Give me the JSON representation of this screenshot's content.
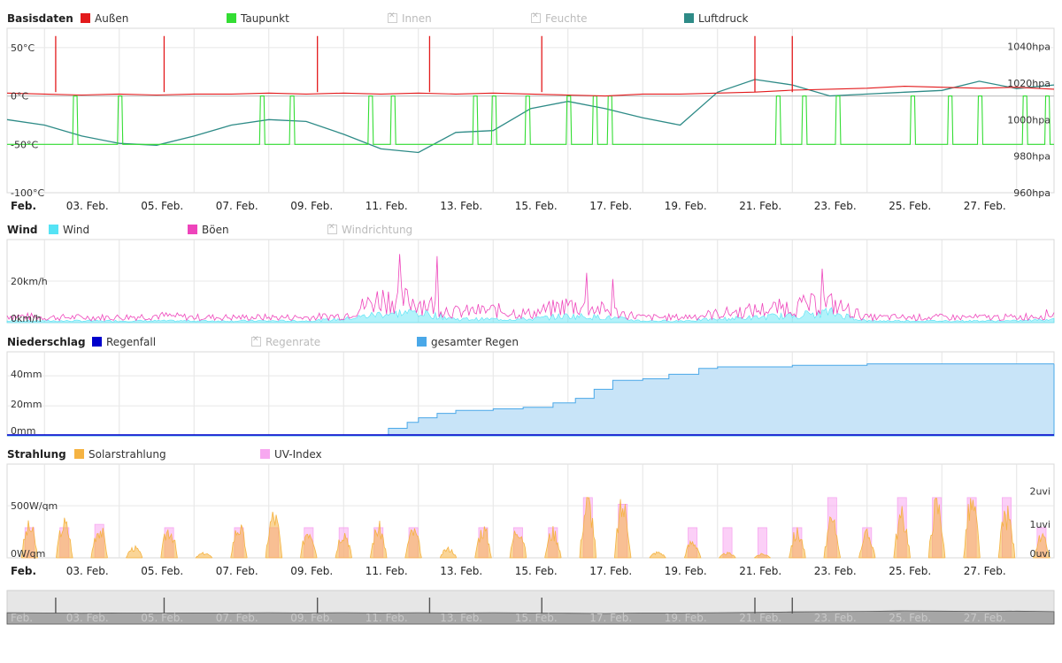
{
  "panels": [
    {
      "id": "basisdaten",
      "title": "Basisdaten",
      "legend": [
        {
          "label": "Außen",
          "color": "#e31a1c",
          "hidden": false
        },
        {
          "label": "Taupunkt",
          "color": "#33dd33",
          "hidden": false
        },
        {
          "label": "Innen",
          "color": "#cccccc",
          "hidden": true
        },
        {
          "label": "Feuchte",
          "color": "#cccccc",
          "hidden": true
        },
        {
          "label": "Luftdruck",
          "color": "#2e8b87",
          "hidden": false
        }
      ],
      "y_left_labels": [
        "50°C",
        "0°C",
        "-50°C",
        "-100°C"
      ],
      "y_right_labels": [
        "1040hpa",
        "1020hpa",
        "1000hpa",
        "980hpa",
        "960hpa"
      ]
    },
    {
      "id": "wind",
      "title": "Wind",
      "legend": [
        {
          "label": "Wind",
          "color": "#55e3f5",
          "hidden": false
        },
        {
          "label": "Böen",
          "color": "#ee44bb",
          "hidden": false
        },
        {
          "label": "Windrichtung",
          "color": "#cccccc",
          "hidden": true
        }
      ],
      "y_left_labels": [
        "20km/h",
        "0km/h"
      ]
    },
    {
      "id": "niederschlag",
      "title": "Niederschlag",
      "legend": [
        {
          "label": "Regenfall",
          "color": "#0000cc",
          "hidden": false
        },
        {
          "label": "Regenrate",
          "color": "#cccccc",
          "hidden": true
        },
        {
          "label": "gesamter Regen",
          "color": "#4aa8e8",
          "hidden": false
        }
      ],
      "y_left_labels": [
        "40mm",
        "20mm",
        "0mm"
      ]
    },
    {
      "id": "strahlung",
      "title": "Strahlung",
      "legend": [
        {
          "label": "Solarstrahlung",
          "color": "#f5b342",
          "hidden": false
        },
        {
          "label": "UV-Index",
          "color": "#f7a8f0",
          "hidden": false
        }
      ],
      "y_left_labels": [
        "500W/qm",
        "0W/qm"
      ],
      "y_right_labels": [
        "2uvi",
        "1uvi",
        "0uvi"
      ]
    }
  ],
  "date_labels": [
    "Feb.",
    "03. Feb.",
    "05. Feb.",
    "07. Feb.",
    "09. Feb.",
    "11. Feb.",
    "13. Feb.",
    "15. Feb.",
    "17. Feb.",
    "19. Feb.",
    "21. Feb.",
    "23. Feb.",
    "25. Feb.",
    "27. Feb."
  ],
  "chart_data": [
    {
      "type": "line",
      "x_label_days": [
        1,
        3,
        5,
        7,
        9,
        11,
        13,
        15,
        17,
        19,
        21,
        23,
        25,
        27
      ],
      "xlim_days": [
        1,
        29
      ],
      "series": [
        {
          "name": "Außen",
          "color": "#e31a1c",
          "axis": "left",
          "x": [
            1,
            2,
            3,
            4,
            5,
            6,
            7,
            8,
            9,
            10,
            11,
            12,
            13,
            14,
            15,
            16,
            17,
            18,
            19,
            20,
            21,
            22,
            23,
            24,
            25,
            26,
            27,
            28,
            29
          ],
          "values": [
            3,
            2,
            1,
            2,
            1,
            2,
            2,
            3,
            2,
            3,
            2,
            3,
            2,
            3,
            2,
            1,
            0,
            2,
            2,
            3,
            4,
            6,
            7,
            8,
            10,
            9,
            8,
            9,
            7
          ]
        },
        {
          "name": "Taupunkt",
          "color": "#33dd33",
          "axis": "left",
          "x": [
            1,
            2,
            3,
            4,
            5,
            6,
            7,
            8,
            9,
            10,
            11,
            12,
            13,
            14,
            15,
            16,
            17,
            18,
            19,
            20,
            21,
            22,
            23,
            24,
            25,
            26,
            27,
            28,
            29
          ],
          "values": [
            -50,
            -50,
            -52,
            -52,
            -52,
            -51,
            -50,
            -50,
            -50,
            -50,
            -52,
            -52,
            -50,
            -51,
            -51,
            -50,
            -52,
            -52,
            -51,
            -52,
            -52,
            -50,
            -52,
            -50,
            -51,
            -50,
            -50,
            -51,
            -51
          ]
        },
        {
          "name": "Luftdruck",
          "color": "#2e8b87",
          "axis": "right",
          "x": [
            1,
            2,
            3,
            4,
            5,
            6,
            7,
            8,
            9,
            10,
            11,
            12,
            13,
            14,
            15,
            16,
            17,
            18,
            19,
            20,
            21,
            22,
            23,
            24,
            25,
            26,
            27,
            28,
            29
          ],
          "values": [
            1000,
            997,
            991,
            987,
            986,
            991,
            997,
            1000,
            999,
            992,
            984,
            982,
            993,
            994,
            1006,
            1010,
            1006,
            1001,
            997,
            1015,
            1022,
            1019,
            1013,
            1014,
            1015,
            1016,
            1021,
            1017,
            1019
          ]
        }
      ],
      "spikes_outdoor_days": [
        2.3,
        5.2,
        9.3,
        12.3,
        15.3,
        21.0,
        22.0
      ],
      "spikes_outdoor_value": 62,
      "dewpoint_peaks_days": [
        2.8,
        4.0,
        7.8,
        8.6,
        10.7,
        11.3,
        13.5,
        14.0,
        14.9,
        16.0,
        16.7,
        17.1,
        21.6,
        22.3,
        23.2,
        25.2,
        26.2,
        27.0,
        28.2,
        28.8
      ],
      "dewpoint_peak_value": 0,
      "ylim_left": [
        -100,
        70
      ],
      "ylim_right": [
        960,
        1050
      ]
    },
    {
      "type": "area",
      "x": [
        1,
        2,
        3,
        4,
        5,
        6,
        7,
        8,
        9,
        10,
        11,
        12,
        13,
        14,
        15,
        16,
        17,
        18,
        19,
        20,
        21,
        22,
        23,
        24,
        25,
        26,
        27,
        28,
        29
      ],
      "series": [
        {
          "name": "Wind",
          "color": "#55e3f5",
          "values": [
            1,
            1,
            1,
            1,
            1,
            1,
            1,
            1,
            1,
            2,
            5,
            6,
            2,
            2,
            2,
            4,
            3,
            1,
            1,
            2,
            3,
            4,
            6,
            1,
            1,
            1,
            1,
            1,
            2
          ]
        },
        {
          "name": "Böen",
          "color": "#ee44bb",
          "values": [
            4,
            3,
            3,
            3,
            4,
            3,
            3,
            3,
            3,
            4,
            14,
            12,
            6,
            7,
            5,
            10,
            7,
            3,
            3,
            5,
            7,
            9,
            11,
            3,
            3,
            3,
            3,
            3,
            5
          ]
        }
      ],
      "gust_peaks_days": [
        11.5,
        12.5,
        16.5,
        17.2,
        22.8
      ],
      "gust_peaks_values": [
        33,
        32,
        24,
        21,
        26
      ],
      "ylim": [
        0,
        40
      ]
    },
    {
      "type": "area",
      "x": [
        1,
        10.8,
        11.2,
        11.7,
        12.0,
        12.5,
        13.0,
        14.0,
        14.8,
        15.6,
        16.2,
        16.7,
        17.2,
        18.0,
        18.7,
        19.5,
        20.0,
        21.0,
        22.0,
        23.0,
        24.0,
        25.0,
        26.0,
        27.0,
        28.0,
        29.0
      ],
      "series": [
        {
          "name": "Regenfall",
          "color": "#0000cc",
          "values": [
            0,
            0,
            0,
            0,
            0,
            0,
            0,
            0,
            0,
            0,
            0,
            0,
            0,
            0,
            0,
            0,
            0,
            0,
            0,
            0,
            0,
            0,
            0,
            0,
            0,
            0
          ]
        },
        {
          "name": "gesamter Regen",
          "color": "#4aa8e8",
          "values": [
            0,
            0,
            5,
            9,
            12,
            15,
            17,
            18,
            19,
            22,
            25,
            31,
            37,
            38,
            41,
            45,
            46,
            46,
            47,
            47,
            48,
            48,
            48,
            48,
            48,
            48
          ]
        }
      ],
      "ylim": [
        0,
        56
      ]
    },
    {
      "type": "area",
      "x_label_days": [
        1,
        3,
        5,
        7,
        9,
        11,
        13,
        15,
        17,
        19,
        21,
        23,
        25,
        27
      ],
      "series": [
        {
          "name": "Solarstrahlung",
          "color": "#f5b342",
          "axis": "left",
          "day_peaks": [
            340,
            380,
            330,
            110,
            320,
            50,
            340,
            470,
            320,
            290,
            330,
            290,
            100,
            320,
            340,
            290,
            620,
            570,
            60,
            180,
            50,
            40,
            280,
            390,
            260,
            460,
            590,
            590,
            480,
            220
          ]
        },
        {
          "name": "UV-Index",
          "color": "#f7a8f0",
          "axis": "right",
          "day_peaks": [
            0.9,
            0.9,
            1.0,
            0,
            0.9,
            0,
            0.9,
            0.9,
            0.9,
            0.9,
            0.9,
            0.9,
            0,
            0.9,
            0.9,
            0.9,
            1.8,
            1.6,
            0,
            0.9,
            0.9,
            0.9,
            0.9,
            1.8,
            0.9,
            1.8,
            1.8,
            1.8,
            1.8,
            0.9
          ]
        }
      ],
      "ylim_left": [
        0,
        900
      ],
      "ylim_right": [
        0,
        2.8
      ]
    }
  ]
}
